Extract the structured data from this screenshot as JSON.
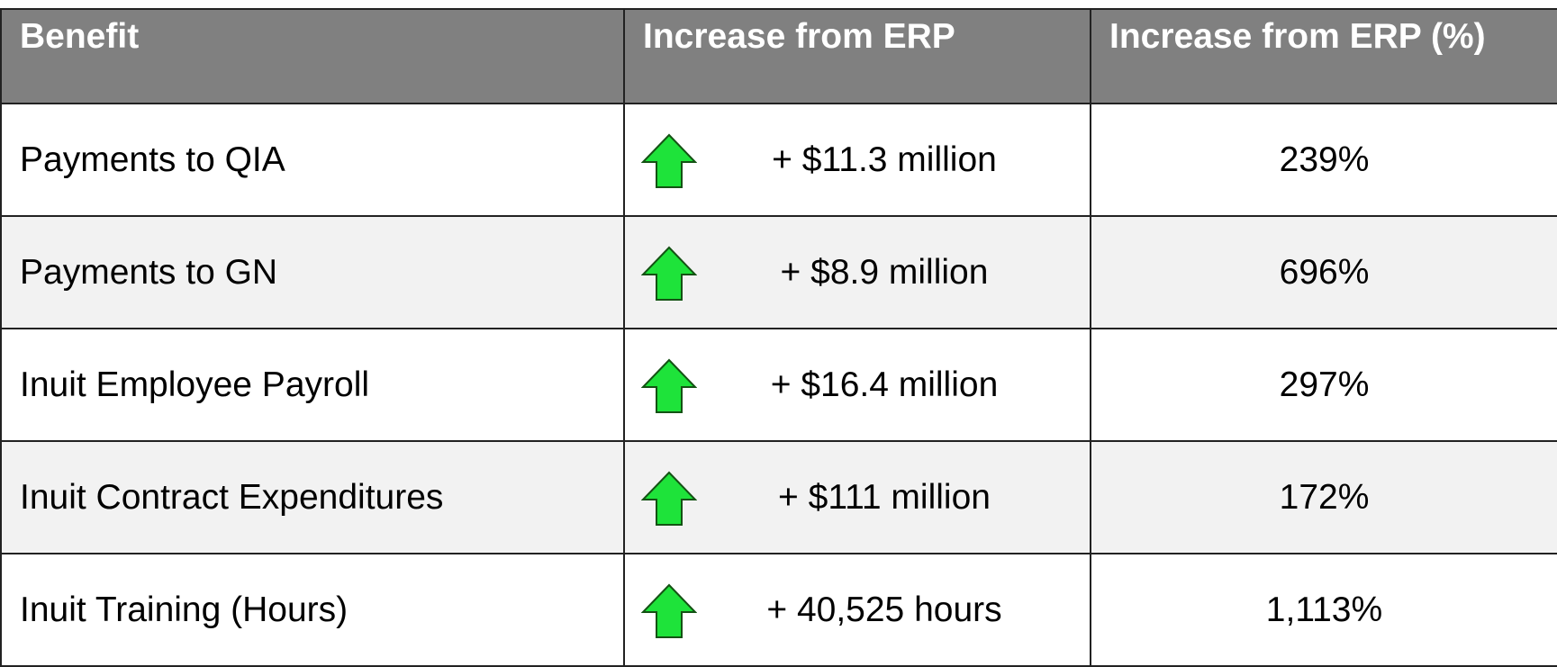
{
  "table": {
    "header": [
      "Benefit",
      "Increase from ERP",
      "Increase from ERP (%)"
    ],
    "rows": [
      [
        "Payments to QIA",
        "+ $11.3 million",
        "239%"
      ],
      [
        "Payments to GN",
        "+ $8.9 million",
        "696%"
      ],
      [
        "Inuit Employee Payroll",
        "+ $16.4 million",
        "297%"
      ],
      [
        "Inuit Contract Expenditures",
        "+ $111 million",
        "172%"
      ],
      [
        "Inuit Training (Hours)",
        "+ 40,525 hours",
        "1,113%"
      ]
    ]
  }
}
